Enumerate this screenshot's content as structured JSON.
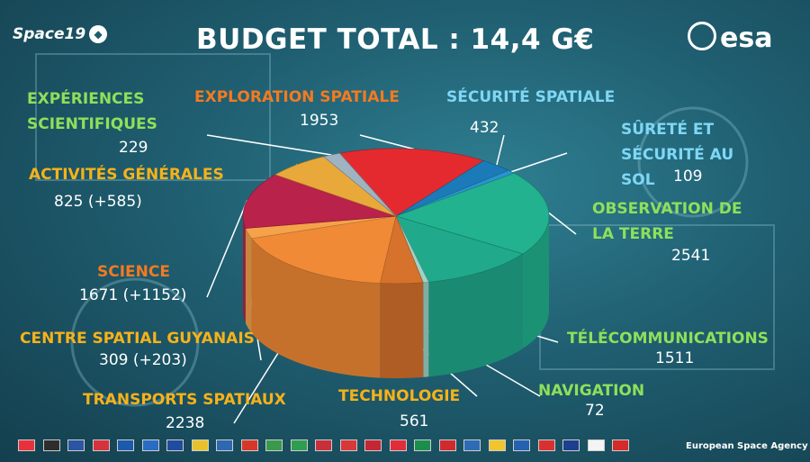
{
  "header": {
    "brand": "Space19",
    "title": "BUDGET TOTAL : 14,4 G€",
    "agency_logo": "esa"
  },
  "footer": {
    "agency_name": "European Space Agency"
  },
  "flags": [
    "#e7323d",
    "#2e2e2e",
    "#2c55a3",
    "#d6323d",
    "#1c5aab",
    "#2a6bc4",
    "#1f4ca0",
    "#e8c22d",
    "#2d68b3",
    "#d7372b",
    "#3a9a4b",
    "#2d9e4f",
    "#c7303b",
    "#d73838",
    "#c52633",
    "#e02d3c",
    "#1a8f4a",
    "#cf2b2f",
    "#2d6cb4",
    "#f0c52d",
    "#2462b1",
    "#d93131",
    "#1d3f8f",
    "#f4f4f4",
    "#d52a2a"
  ],
  "chart_data": {
    "type": "pie",
    "title": "BUDGET TOTAL : 14,4 G€",
    "series": [
      {
        "label": "EXPLORATION SPATIALE",
        "value": 1953,
        "value_text": "1953",
        "color": "#e52a2f"
      },
      {
        "label": "SÉCURITÉ SPATIALE",
        "value": 432,
        "value_text": "432",
        "color": "#1b7bb9"
      },
      {
        "label": "SÛRETÉ ET SÉCURITÉ AU SOL",
        "value": 109,
        "value_text": "109",
        "color": "#2a93d1"
      },
      {
        "label": "OBSERVATION DE LA TERRE",
        "value": 2541,
        "value_text": "2541",
        "color": "#22b28f"
      },
      {
        "label": "TÉLÉCOMMUNICATIONS",
        "value": 1511,
        "value_text": "1511",
        "color": "#20a98b"
      },
      {
        "label": "NAVIGATION",
        "value": 72,
        "value_text": "72",
        "color": "#9fd3c7"
      },
      {
        "label": "TECHNOLOGIE",
        "value": 561,
        "value_text": "561",
        "color": "#d6722c"
      },
      {
        "label": "TRANSPORTS SPATIAUX",
        "value": 2238,
        "value_text": "2238",
        "color": "#f08a36"
      },
      {
        "label": "CENTRE SPATIAL GUYANAIS",
        "value": 309,
        "value_text": "309 (+203)",
        "color": "#f5a24a"
      },
      {
        "label": "SCIENCE",
        "value": 1671,
        "value_text": "1671 (+1152)",
        "color": "#b9224a"
      },
      {
        "label": "ACTIVITÉS GÉNÉRALES",
        "value": 825,
        "value_text": "825 (+585)",
        "color": "#e9a93a"
      },
      {
        "label": "EXPÉRIENCES SCIENTIFIQUES",
        "value": 229,
        "value_text": "229",
        "color": "#9fb3c2"
      }
    ]
  }
}
